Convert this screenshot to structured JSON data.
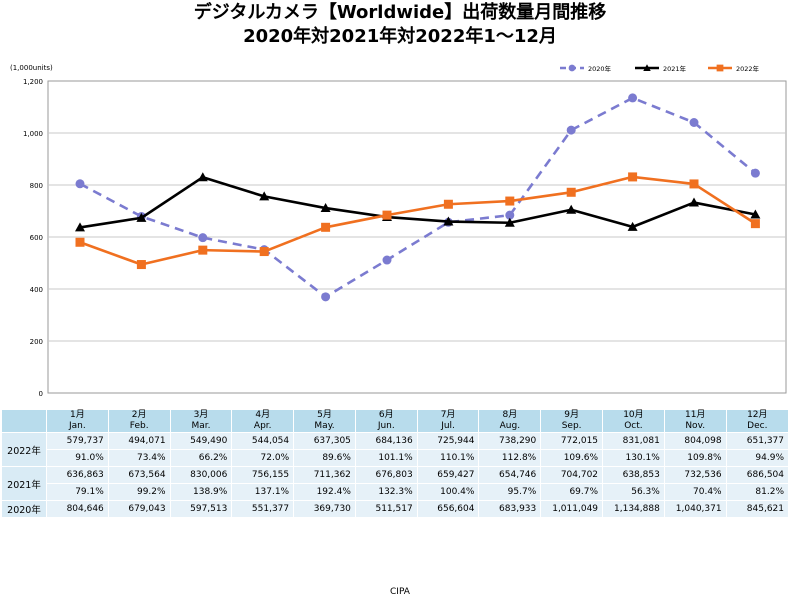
{
  "chart_data": {
    "type": "line",
    "title": "デジタルカメラ【Worldwide】出荷数量月間推移",
    "subtitle": "2020年対2021年対2022年1～12月",
    "ylabel": "(1,000units)",
    "ylim": [
      0,
      1200
    ],
    "yticks": [
      "0",
      "200",
      "400",
      "600",
      "800",
      "1,000",
      "1,200"
    ],
    "grid": true,
    "legend_position": "top-right",
    "categories": [
      "1月",
      "2月",
      "3月",
      "4月",
      "5月",
      "6月",
      "7月",
      "8月",
      "9月",
      "10月",
      "11月",
      "12月"
    ],
    "categories_en": [
      "Jan.",
      "Feb.",
      "Mar.",
      "Apr.",
      "May.",
      "Jun.",
      "Jul.",
      "Aug.",
      "Sep.",
      "Oct.",
      "Nov.",
      "Dec."
    ],
    "series": [
      {
        "name": "2020年",
        "color": "#7b7bd0",
        "style": "dashed",
        "marker": "circle",
        "values": [
          804.646,
          679.043,
          597.513,
          551.377,
          369.73,
          511.517,
          656.604,
          683.933,
          1011.049,
          1134.888,
          1040.371,
          845.621
        ]
      },
      {
        "name": "2021年",
        "color": "#000000",
        "style": "solid",
        "marker": "triangle",
        "values": [
          636.863,
          673.564,
          830.006,
          756.155,
          711.362,
          676.803,
          659.427,
          654.746,
          704.702,
          638.853,
          732.536,
          686.504
        ]
      },
      {
        "name": "2022年",
        "color": "#f07020",
        "style": "solid",
        "marker": "square",
        "values": [
          579.737,
          494.071,
          549.49,
          544.054,
          637.305,
          684.136,
          725.944,
          738.29,
          772.015,
          831.081,
          804.098,
          651.377
        ]
      }
    ],
    "table": {
      "rows": [
        {
          "label": "2022年",
          "values": [
            "579,737",
            "494,071",
            "549,490",
            "544,054",
            "637,305",
            "684,136",
            "725,944",
            "738,290",
            "772,015",
            "831,081",
            "804,098",
            "651,377"
          ],
          "ratios": [
            "91.0%",
            "73.4%",
            "66.2%",
            "72.0%",
            "89.6%",
            "101.1%",
            "110.1%",
            "112.8%",
            "109.6%",
            "130.1%",
            "109.8%",
            "94.9%"
          ]
        },
        {
          "label": "2021年",
          "values": [
            "636,863",
            "673,564",
            "830,006",
            "756,155",
            "711,362",
            "676,803",
            "659,427",
            "654,746",
            "704,702",
            "638,853",
            "732,536",
            "686,504"
          ],
          "ratios": [
            "79.1%",
            "99.2%",
            "138.9%",
            "137.1%",
            "192.4%",
            "132.3%",
            "100.4%",
            "95.7%",
            "69.7%",
            "56.3%",
            "70.4%",
            "81.2%"
          ]
        },
        {
          "label": "2020年",
          "values": [
            "804,646",
            "679,043",
            "597,513",
            "551,377",
            "369,730",
            "511,517",
            "656,604",
            "683,933",
            "1,011,049",
            "1,134,888",
            "1,040,371",
            "845,621"
          ]
        }
      ]
    }
  },
  "footer": "CIPA"
}
